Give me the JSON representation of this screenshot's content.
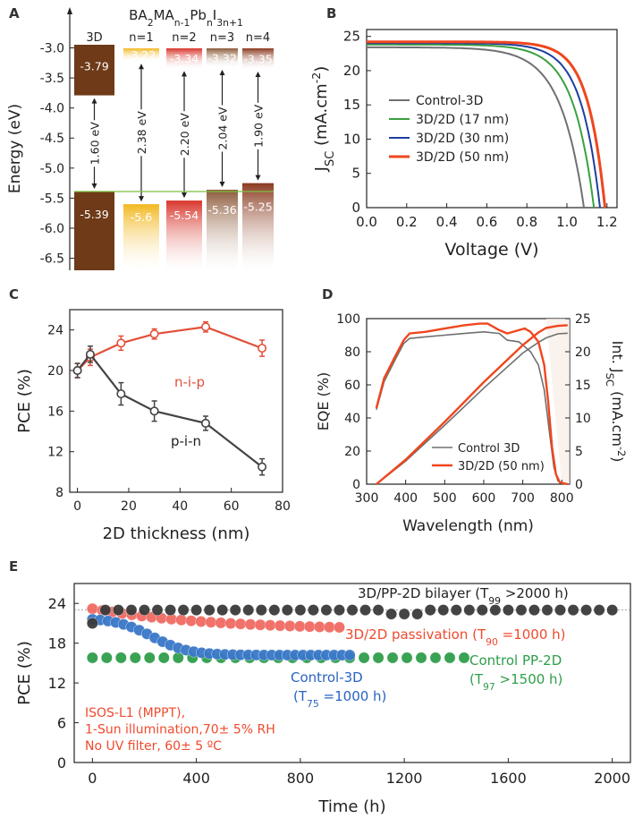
{
  "chart_data": [
    {
      "panel": "A",
      "type": "bar",
      "title_parts": [
        "BA",
        "2",
        "MA",
        "n-1",
        "Pb",
        "n",
        "I",
        "3n+1"
      ],
      "ylabel": "Energy (eV)",
      "ylim": [
        -6.7,
        -2.65
      ],
      "yticks": [
        -3.0,
        -3.5,
        -4.0,
        -4.5,
        -5.0,
        -5.5,
        -6.0,
        -6.5
      ],
      "categories": [
        "3D",
        "n=1",
        "n=2",
        "n=3",
        "n=4"
      ],
      "cbm": [
        -3.79,
        -3.22,
        -3.34,
        -3.32,
        -3.35
      ],
      "vbm": [
        -5.39,
        -5.6,
        -5.54,
        -5.36,
        -5.25
      ],
      "cbm_labels": [
        "-3.79",
        "-3.22",
        "-3.34",
        "-3.32",
        "-3.35"
      ],
      "vbm_labels": [
        "-5.39",
        "-5.6",
        "-5.54",
        "-5.36",
        "-5.25"
      ],
      "bandgap_labels": [
        "1.60 eV",
        "2.38 eV",
        "2.20 eV",
        "2.04 eV",
        "1.90 eV"
      ],
      "colors": [
        "#6e3a18",
        "#f2b81f",
        "#d8352b",
        "#8c5a3a",
        "#8b3a20"
      ],
      "reference_line": -5.39
    },
    {
      "panel": "B",
      "type": "line",
      "xlabel": "Voltage (V)",
      "xlim": [
        0,
        1.25
      ],
      "ylim": [
        0,
        26
      ],
      "xticks": [
        "0.0",
        "0.2",
        "0.4",
        "0.6",
        "0.8",
        "1.0",
        "1.2"
      ],
      "yticks": [
        0,
        5,
        10,
        15,
        20,
        25
      ],
      "series": [
        {
          "name": "Control-3D",
          "color": "#707070",
          "width": 2,
          "jsc": 23.4,
          "voc": 1.085,
          "n": 2.6
        },
        {
          "name": "3D/2D (17 nm)",
          "color": "#3aa040",
          "width": 2,
          "jsc": 23.8,
          "voc": 1.135,
          "n": 2.3
        },
        {
          "name": "3D/2D (30 nm)",
          "color": "#1e3f9e",
          "width": 2,
          "jsc": 24.0,
          "voc": 1.165,
          "n": 2.1
        },
        {
          "name": "3D/2D (50 nm)",
          "color": "#f0461e",
          "width": 3,
          "jsc": 24.2,
          "voc": 1.19,
          "n": 1.9
        }
      ]
    },
    {
      "panel": "C",
      "type": "line",
      "xlabel": "2D thickness (nm)",
      "ylabel": "PCE (%)",
      "xlim": [
        -3,
        80
      ],
      "ylim": [
        8,
        26
      ],
      "xticks": [
        0,
        20,
        40,
        60,
        80
      ],
      "yticks": [
        8,
        12,
        16,
        20,
        24
      ],
      "series": [
        {
          "name": "n-i-p",
          "color": "#e2503a",
          "x": [
            0,
            5,
            17,
            30,
            50,
            72
          ],
          "y": [
            20.0,
            21.3,
            22.7,
            23.6,
            24.3,
            22.2
          ],
          "err": [
            0.7,
            0.8,
            0.7,
            0.5,
            0.5,
            0.8
          ]
        },
        {
          "name": "p-i-n",
          "color": "#444444",
          "x": [
            0,
            5,
            17,
            30,
            50,
            72
          ],
          "y": [
            20.0,
            21.6,
            17.7,
            16.0,
            14.8,
            10.5
          ],
          "err": [
            0.7,
            0.8,
            1.1,
            1.0,
            0.7,
            0.8
          ]
        }
      ]
    },
    {
      "panel": "D",
      "type": "line",
      "xlabel": "Wavelength (nm)",
      "ylabel": "EQE (%)",
      "xlim": [
        300,
        820
      ],
      "ylim": [
        0,
        100
      ],
      "y2lim": [
        0,
        25
      ],
      "xticks": [
        300,
        400,
        500,
        600,
        700,
        800
      ],
      "yticks": [
        0,
        20,
        40,
        60,
        80,
        100
      ],
      "y2ticks": [
        0,
        5,
        10,
        15,
        20,
        25
      ],
      "series": [
        {
          "name": "Control 3D",
          "color": "#707070",
          "width": 1.6,
          "eqe": [
            [
              325,
              45
            ],
            [
              345,
              62
            ],
            [
              375,
              76
            ],
            [
              395,
              85
            ],
            [
              410,
              88
            ],
            [
              450,
              89
            ],
            [
              500,
              90
            ],
            [
              550,
              91
            ],
            [
              600,
              92
            ],
            [
              640,
              91
            ],
            [
              660,
              87
            ],
            [
              690,
              86
            ],
            [
              720,
              80
            ],
            [
              740,
              72
            ],
            [
              755,
              57
            ],
            [
              770,
              28
            ],
            [
              780,
              10
            ],
            [
              790,
              2
            ],
            [
              800,
              0.5
            ],
            [
              815,
              0
            ]
          ],
          "jsc": [
            [
              325,
              0
            ],
            [
              400,
              3.5
            ],
            [
              500,
              8.9
            ],
            [
              600,
              14.5
            ],
            [
              700,
              19.8
            ],
            [
              740,
              21.4
            ],
            [
              760,
              22.1
            ],
            [
              790,
              22.7
            ],
            [
              815,
              22.8
            ]
          ]
        },
        {
          "name": "3D/2D (50 nm)",
          "color": "#f0461e",
          "width": 2.4,
          "eqe": [
            [
              325,
              46
            ],
            [
              345,
              64
            ],
            [
              375,
              78
            ],
            [
              395,
              87
            ],
            [
              410,
              91
            ],
            [
              450,
              92
            ],
            [
              500,
              94
            ],
            [
              550,
              96
            ],
            [
              590,
              97
            ],
            [
              610,
              97
            ],
            [
              640,
              93
            ],
            [
              660,
              91
            ],
            [
              690,
              93
            ],
            [
              705,
              94
            ],
            [
              720,
              92
            ],
            [
              740,
              86
            ],
            [
              755,
              72
            ],
            [
              765,
              50
            ],
            [
              775,
              22
            ],
            [
              785,
              6
            ],
            [
              795,
              1
            ],
            [
              815,
              0
            ]
          ],
          "jsc": [
            [
              325,
              0
            ],
            [
              400,
              3.7
            ],
            [
              500,
              9.4
            ],
            [
              600,
              15.4
            ],
            [
              700,
              21.0
            ],
            [
              740,
              22.9
            ],
            [
              760,
              23.6
            ],
            [
              790,
              23.9
            ],
            [
              815,
              24.0
            ]
          ]
        }
      ]
    },
    {
      "panel": "E",
      "type": "scatter",
      "xlabel": "Time (h)",
      "ylabel": "PCE (%)",
      "xlim": [
        -70,
        2070
      ],
      "ylim": [
        0,
        27
      ],
      "xticks": [
        0,
        400,
        800,
        1200,
        1600,
        2000
      ],
      "yticks": [
        0,
        6,
        12,
        18,
        24
      ],
      "series": [
        {
          "name": "3D/PP-2D bilayer",
          "color": "#3a3a3a",
          "tmax": 2000,
          "step": 50
        },
        {
          "name": "3D/2D passivation",
          "color": "#ef5a52",
          "tmax": 980,
          "step": 38
        },
        {
          "name": "Control PP-2D",
          "color": "#2f9e4a",
          "tmax": 1460,
          "step": 55
        },
        {
          "name": "Control-3D",
          "color": "#3a78c8",
          "tmax": 1000,
          "step": 30
        }
      ],
      "annotations": {
        "bilayer": [
          "3D/PP-2D bilayer (T",
          "99",
          " >2000 h)"
        ],
        "passivation": [
          "3D/2D passivation (T",
          "90",
          " =1000 h)"
        ],
        "control_pp": [
          "Control PP-2D",
          "(T",
          "97",
          " >1500 h)"
        ],
        "control_3d": [
          "Control-3D",
          "(T",
          "75",
          " =1000 h)"
        ],
        "conditions": [
          "ISOS-L1 (MPPT),",
          "1-Sun illumination,70± 5% RH",
          "No UV filter, 60± 5 ºC"
        ]
      }
    }
  ],
  "panel_labels": [
    "A",
    "B",
    "C",
    "D",
    "E"
  ],
  "colors": {
    "axis": "#222222",
    "red": "#ef4a2e",
    "grid": "#cccccc"
  }
}
